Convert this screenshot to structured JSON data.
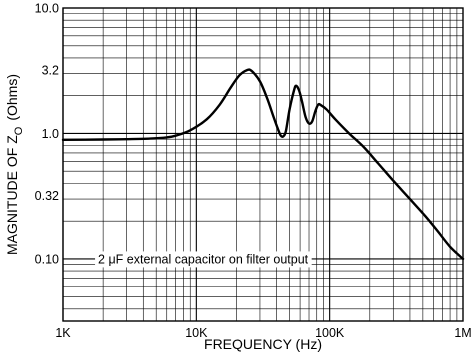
{
  "chart_data": {
    "type": "line",
    "title": "",
    "xlabel": "FREQUENCY (Hz)",
    "ylabel": "MAGNITUDE OF Z",
    "ylabel_subscript": "O",
    "ylabel_unit": "(Ohms)",
    "xscale": "log",
    "yscale": "log",
    "xlim": [
      1000,
      1000000
    ],
    "ylim": [
      0.032,
      10
    ],
    "grid": true,
    "x_ticks": [
      {
        "value": 1000,
        "label": "1K"
      },
      {
        "value": 10000,
        "label": "10K"
      },
      {
        "value": 100000,
        "label": "100K"
      },
      {
        "value": 1000000,
        "label": "1M"
      }
    ],
    "y_ticks": [
      {
        "value": 0.1,
        "label": "0.10"
      },
      {
        "value": 0.32,
        "label": "0.32"
      },
      {
        "value": 1.0,
        "label": "1.0"
      },
      {
        "value": 3.2,
        "label": "3.2"
      },
      {
        "value": 10,
        "label": "10.0"
      }
    ],
    "annotation": {
      "text": "2 μF external capacitor on filter output",
      "x": 2500,
      "y": 0.1
    },
    "series": [
      {
        "points": [
          [
            1000,
            0.89
          ],
          [
            2000,
            0.895
          ],
          [
            3000,
            0.9
          ],
          [
            4500,
            0.91
          ],
          [
            6000,
            0.93
          ],
          [
            7000,
            0.96
          ],
          [
            9000,
            1.06
          ],
          [
            12000,
            1.3
          ],
          [
            15000,
            1.7
          ],
          [
            18000,
            2.3
          ],
          [
            21000,
            2.9
          ],
          [
            24000,
            3.2
          ],
          [
            26000,
            3.15
          ],
          [
            30000,
            2.6
          ],
          [
            34000,
            1.9
          ],
          [
            38000,
            1.35
          ],
          [
            41000,
            1.08
          ],
          [
            43000,
            0.96
          ],
          [
            45000,
            0.95
          ],
          [
            47000,
            1.05
          ],
          [
            50000,
            1.55
          ],
          [
            54000,
            2.2
          ],
          [
            56000,
            2.4
          ],
          [
            59000,
            2.2
          ],
          [
            62000,
            1.8
          ],
          [
            66000,
            1.35
          ],
          [
            70000,
            1.2
          ],
          [
            74000,
            1.25
          ],
          [
            78000,
            1.5
          ],
          [
            82000,
            1.7
          ],
          [
            86000,
            1.68
          ],
          [
            95000,
            1.55
          ],
          [
            110000,
            1.3
          ],
          [
            140000,
            1.0
          ],
          [
            180000,
            0.78
          ],
          [
            230000,
            0.58
          ],
          [
            300000,
            0.42
          ],
          [
            400000,
            0.3
          ],
          [
            520000,
            0.22
          ],
          [
            650000,
            0.165
          ],
          [
            800000,
            0.125
          ],
          [
            1000000,
            0.1
          ]
        ]
      }
    ]
  }
}
